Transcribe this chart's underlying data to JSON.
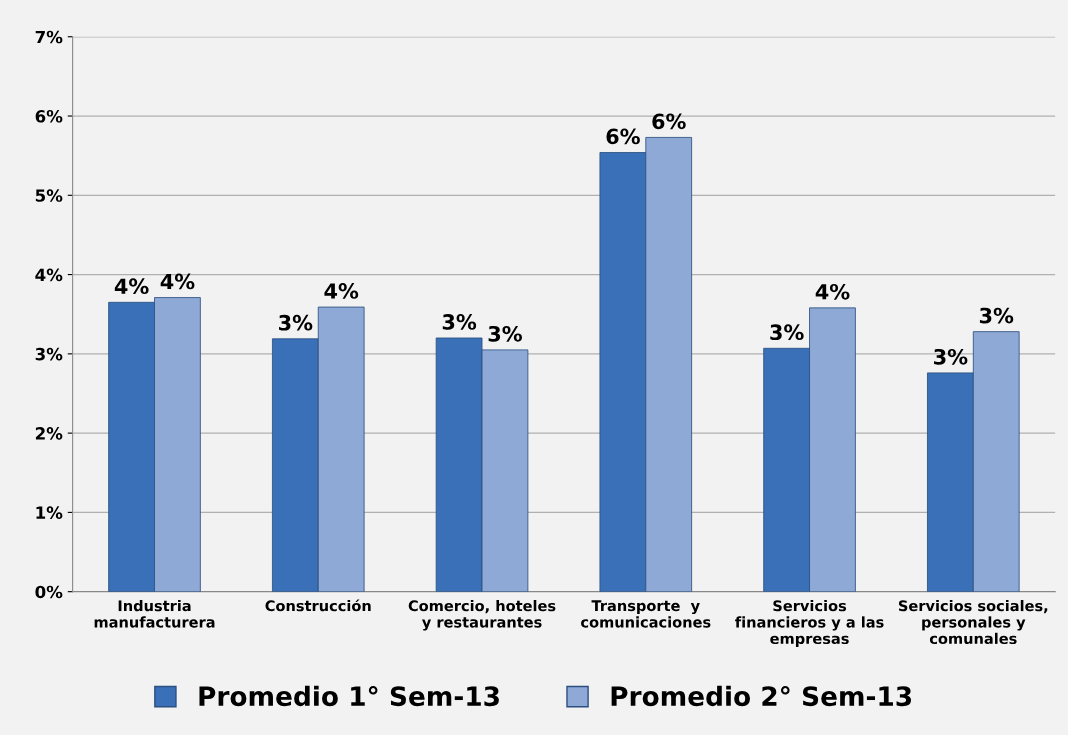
{
  "chart_data": {
    "type": "bar",
    "categories": [
      "Industria\nmanufacturera",
      "Construcción",
      "Comercio, hoteles\ny restaurantes",
      "Transporte  y\ncomunicaciones",
      "Servicios\nfinancieros y a las\nempresas",
      "Servicios sociales,\npersonales y\ncomunales"
    ],
    "series": [
      {
        "name": "Promedio 1° Sem-13",
        "color": "#3a70b8",
        "values": [
          3.65,
          3.19,
          3.2,
          5.54,
          3.07,
          2.76
        ],
        "value_labels": [
          "4%",
          "3%",
          "3%",
          "6%",
          "3%",
          "3%"
        ]
      },
      {
        "name": "Promedio 2° Sem-13",
        "color": "#8fa9d6",
        "values": [
          3.71,
          3.59,
          3.05,
          5.73,
          3.58,
          3.28
        ],
        "value_labels": [
          "4%",
          "4%",
          "3%",
          "6%",
          "4%",
          "3%"
        ]
      }
    ],
    "ylim": [
      0,
      7
    ],
    "yticks": [
      {
        "value": 0,
        "label": "0%"
      },
      {
        "value": 1,
        "label": "1%"
      },
      {
        "value": 2,
        "label": "2%"
      },
      {
        "value": 3,
        "label": "3%"
      },
      {
        "value": 4,
        "label": "4%"
      },
      {
        "value": 5,
        "label": "5%"
      },
      {
        "value": 6,
        "label": "6%"
      },
      {
        "value": 7,
        "label": "7%"
      }
    ],
    "grid": "y",
    "legend": "bottom"
  }
}
